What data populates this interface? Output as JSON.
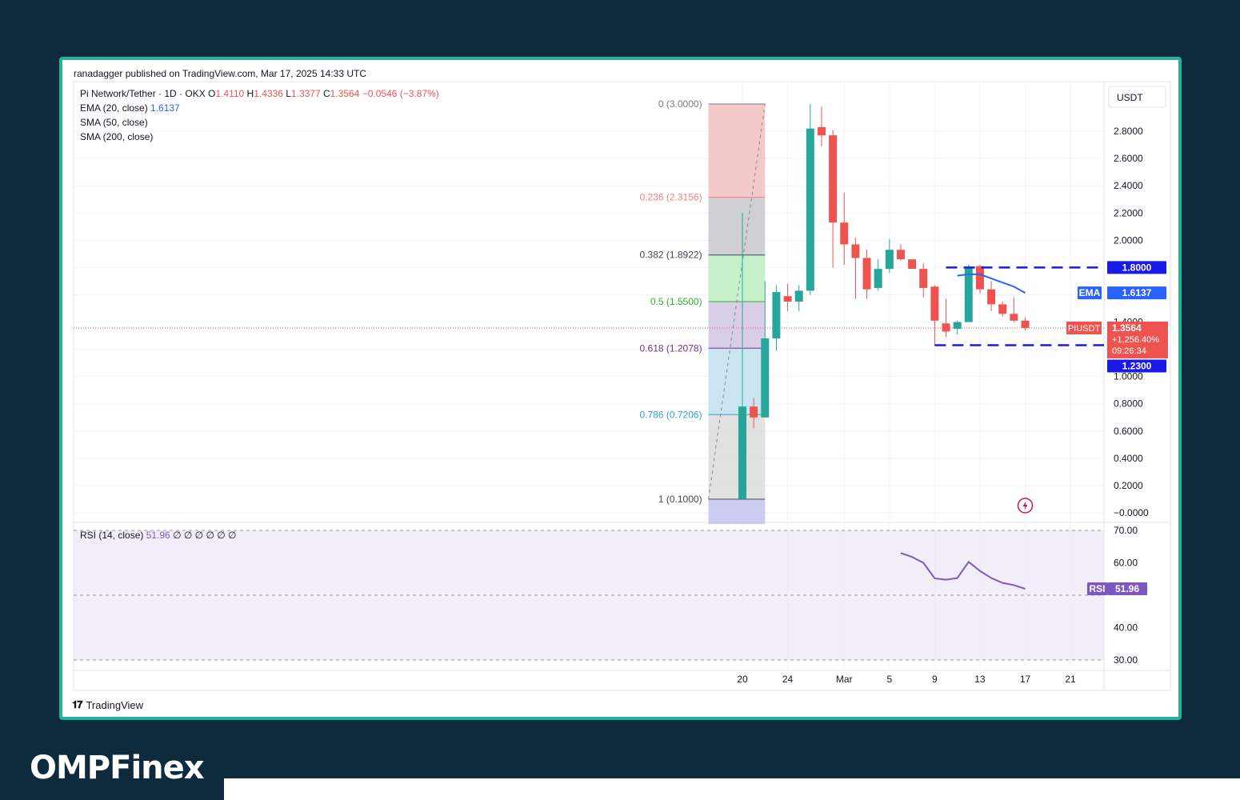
{
  "header": {
    "published": "ranadagger published on TradingView.com, Mar 17, 2025 14:33 UTC"
  },
  "legend": {
    "symbol": "Pi Network/Tether · 1D · OKX",
    "o_label": "O",
    "o_val": "1.4110",
    "h_label": "H",
    "h_val": "1.4336",
    "l_label": "L",
    "l_val": "1.3377",
    "c_label": "C",
    "c_val": "1.3564",
    "change": "−0.0546 (−3.87%)",
    "ema_label": "EMA (20, close)",
    "ema_val": "1.6137",
    "sma50": "SMA (50, close)",
    "sma200": "SMA (200, close)",
    "rsi_label": "RSI (14, close)",
    "rsi_val": "51.96",
    "rsi_extra": "∅ ∅ ∅ ∅ ∅ ∅"
  },
  "currency": "USDT",
  "footer": {
    "brand": "TradingView",
    "site_logo": "OMPFinex"
  },
  "colors": {
    "up": "#26a69a",
    "down": "#ef5350",
    "ema": "#2962ff",
    "rsi": "#7e57c2",
    "frame": "#22b39a",
    "bg": "#0e2a3d"
  },
  "chart_data": {
    "type": "candlestick",
    "symbol": "PIUSDT",
    "interval": "1D",
    "x_ticks": [
      "20",
      "24",
      "Mar",
      "5",
      "9",
      "13",
      "17",
      "21"
    ],
    "y_ticks": [
      "2.8000",
      "2.6000",
      "2.4000",
      "2.2000",
      "2.0000",
      "1.4000",
      "1.0000",
      "0.8000",
      "0.6000",
      "0.4000",
      "0.2000",
      "−0.0000"
    ],
    "ylim": [
      -0.07,
      3.0
    ],
    "candles": [
      {
        "x": "2025-02-20",
        "o": 0.1,
        "h": 2.2,
        "l": 0.1,
        "c": 0.78
      },
      {
        "x": "2025-02-21",
        "o": 0.78,
        "h": 0.84,
        "l": 0.62,
        "c": 0.7
      },
      {
        "x": "2025-02-22",
        "o": 0.7,
        "h": 1.7,
        "l": 0.7,
        "c": 1.28
      },
      {
        "x": "2025-02-23",
        "o": 1.28,
        "h": 1.67,
        "l": 1.19,
        "c": 1.62
      },
      {
        "x": "2025-02-24",
        "o": 1.59,
        "h": 1.68,
        "l": 1.48,
        "c": 1.55
      },
      {
        "x": "2025-02-25",
        "o": 1.55,
        "h": 1.67,
        "l": 1.48,
        "c": 1.63
      },
      {
        "x": "2025-02-26",
        "o": 1.63,
        "h": 3.0,
        "l": 1.6,
        "c": 2.82
      },
      {
        "x": "2025-02-27",
        "o": 2.83,
        "h": 2.98,
        "l": 2.69,
        "c": 2.77
      },
      {
        "x": "2025-02-28",
        "o": 2.77,
        "h": 2.81,
        "l": 1.8,
        "c": 2.13
      },
      {
        "x": "2025-03-01",
        "o": 2.13,
        "h": 2.35,
        "l": 1.82,
        "c": 1.97
      },
      {
        "x": "2025-03-02",
        "o": 1.97,
        "h": 2.02,
        "l": 1.57,
        "c": 1.87
      },
      {
        "x": "2025-03-03",
        "o": 1.87,
        "h": 1.93,
        "l": 1.57,
        "c": 1.64
      },
      {
        "x": "2025-03-04",
        "o": 1.65,
        "h": 1.86,
        "l": 1.63,
        "c": 1.79
      },
      {
        "x": "2025-03-05",
        "o": 1.79,
        "h": 2.01,
        "l": 1.76,
        "c": 1.93
      },
      {
        "x": "2025-03-06",
        "o": 1.93,
        "h": 1.97,
        "l": 1.85,
        "c": 1.86
      },
      {
        "x": "2025-03-07",
        "o": 1.86,
        "h": 1.86,
        "l": 1.79,
        "c": 1.79
      },
      {
        "x": "2025-03-08",
        "o": 1.79,
        "h": 1.83,
        "l": 1.58,
        "c": 1.65
      },
      {
        "x": "2025-03-09",
        "o": 1.66,
        "h": 1.67,
        "l": 1.23,
        "c": 1.41
      },
      {
        "x": "2025-03-10",
        "o": 1.39,
        "h": 1.57,
        "l": 1.29,
        "c": 1.33
      },
      {
        "x": "2025-03-11",
        "o": 1.35,
        "h": 1.41,
        "l": 1.31,
        "c": 1.4
      },
      {
        "x": "2025-03-12",
        "o": 1.4,
        "h": 1.82,
        "l": 1.4,
        "c": 1.8
      },
      {
        "x": "2025-03-13",
        "o": 1.81,
        "h": 1.82,
        "l": 1.61,
        "c": 1.64
      },
      {
        "x": "2025-03-14",
        "o": 1.64,
        "h": 1.7,
        "l": 1.48,
        "c": 1.53
      },
      {
        "x": "2025-03-15",
        "o": 1.53,
        "h": 1.55,
        "l": 1.44,
        "c": 1.46
      },
      {
        "x": "2025-03-16",
        "o": 1.46,
        "h": 1.58,
        "l": 1.4,
        "c": 1.41
      },
      {
        "x": "2025-03-17",
        "o": 1.41,
        "h": 1.4336,
        "l": 1.3377,
        "c": 1.3564
      }
    ],
    "ema20": [
      {
        "x": "2025-03-11",
        "y": 1.74
      },
      {
        "x": "2025-03-12",
        "y": 1.75
      },
      {
        "x": "2025-03-13",
        "y": 1.75
      },
      {
        "x": "2025-03-14",
        "y": 1.72
      },
      {
        "x": "2025-03-15",
        "y": 1.69
      },
      {
        "x": "2025-03-16",
        "y": 1.66
      },
      {
        "x": "2025-03-17",
        "y": 1.6137
      }
    ],
    "fib": {
      "from": {
        "x": "2025-02-17",
        "price": 0.1
      },
      "to": {
        "x": "2025-02-22",
        "price": 3.0
      },
      "levels": [
        {
          "ratio": 0,
          "price": 3.0,
          "label": "0 (3.0000)",
          "color": "#787b86",
          "fill": "#f2c0c0"
        },
        {
          "ratio": 0.236,
          "price": 2.3156,
          "label": "0.236 (2.3156)",
          "color": "#f08080",
          "fill": "#c8c8cc"
        },
        {
          "ratio": 0.382,
          "price": 1.8922,
          "label": "0.382 (1.8922)",
          "color": "#434651",
          "fill": "#bcedc0"
        },
        {
          "ratio": 0.5,
          "price": 1.55,
          "label": "0.5 (1.5500)",
          "color": "#33b033",
          "fill": "#d2c6e4"
        },
        {
          "ratio": 0.618,
          "price": 1.2078,
          "label": "0.618 (1.2078)",
          "color": "#7a2f8f",
          "fill": "#c1dff0"
        },
        {
          "ratio": 0.786,
          "price": 0.7206,
          "label": "0.786 (0.7206)",
          "color": "#3a9bd1",
          "fill": "#dcdcdc"
        },
        {
          "ratio": 1,
          "price": 0.1,
          "label": "1 (0.1000)",
          "color": "#434651",
          "fill": "#c3c3f0"
        }
      ]
    },
    "range_lines": [
      {
        "price": 1.8,
        "from": "2025-03-10",
        "to": "2025-03-24",
        "label": "1.8000"
      },
      {
        "price": 1.23,
        "from": "2025-03-09",
        "to": "2025-03-24",
        "label": "1.2300"
      }
    ],
    "price_tags": {
      "ema_name": "EMA",
      "ema_value": "1.6137",
      "sym_name": "PIUSDT",
      "last": "1.3564",
      "pct": "+1,256.40%",
      "countdown": "09:26:34"
    },
    "rsi": {
      "period": 14,
      "value": "51.96",
      "ylim": [
        27,
        71
      ],
      "y_ticks": [
        "70.00",
        "60.00",
        "40.00",
        "30.00"
      ],
      "bands": [
        30,
        70
      ],
      "middle": 50,
      "tag": "RSI",
      "points": [
        {
          "x": "2025-03-06",
          "y": 63
        },
        {
          "x": "2025-03-07",
          "y": 61.8
        },
        {
          "x": "2025-03-08",
          "y": 60
        },
        {
          "x": "2025-03-09",
          "y": 55.2
        },
        {
          "x": "2025-03-10",
          "y": 54.8
        },
        {
          "x": "2025-03-11",
          "y": 55.3
        },
        {
          "x": "2025-03-12",
          "y": 60.3
        },
        {
          "x": "2025-03-13",
          "y": 57.5
        },
        {
          "x": "2025-03-14",
          "y": 55.3
        },
        {
          "x": "2025-03-15",
          "y": 53.8
        },
        {
          "x": "2025-03-16",
          "y": 53.1
        },
        {
          "x": "2025-03-17",
          "y": 51.96
        }
      ]
    },
    "grid": true
  }
}
